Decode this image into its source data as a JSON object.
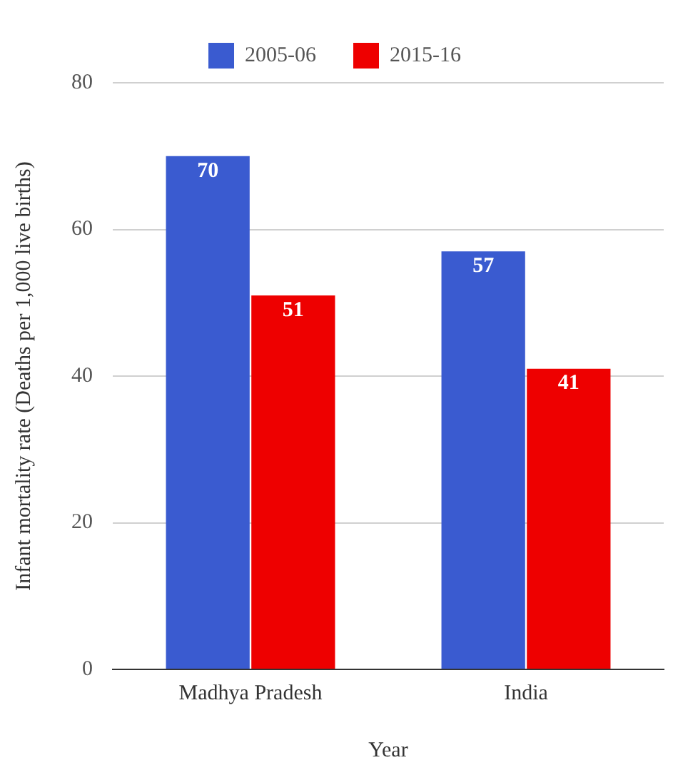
{
  "chart_data": {
    "type": "bar",
    "xlabel": "Year",
    "ylabel": "Infant mortality rate (Deaths per 1,000 live births)",
    "categories": [
      "Madhya Pradesh",
      "India"
    ],
    "series": [
      {
        "name": "2005-06",
        "color": "#3a5bd0",
        "values": [
          70,
          57
        ]
      },
      {
        "name": "2015-16",
        "color": "#ee0000",
        "values": [
          51,
          41
        ]
      }
    ],
    "ylim": [
      0,
      80
    ],
    "yticks": [
      0,
      20,
      40,
      60,
      80
    ],
    "grid": "y",
    "legend": "top",
    "data_labels": true
  }
}
